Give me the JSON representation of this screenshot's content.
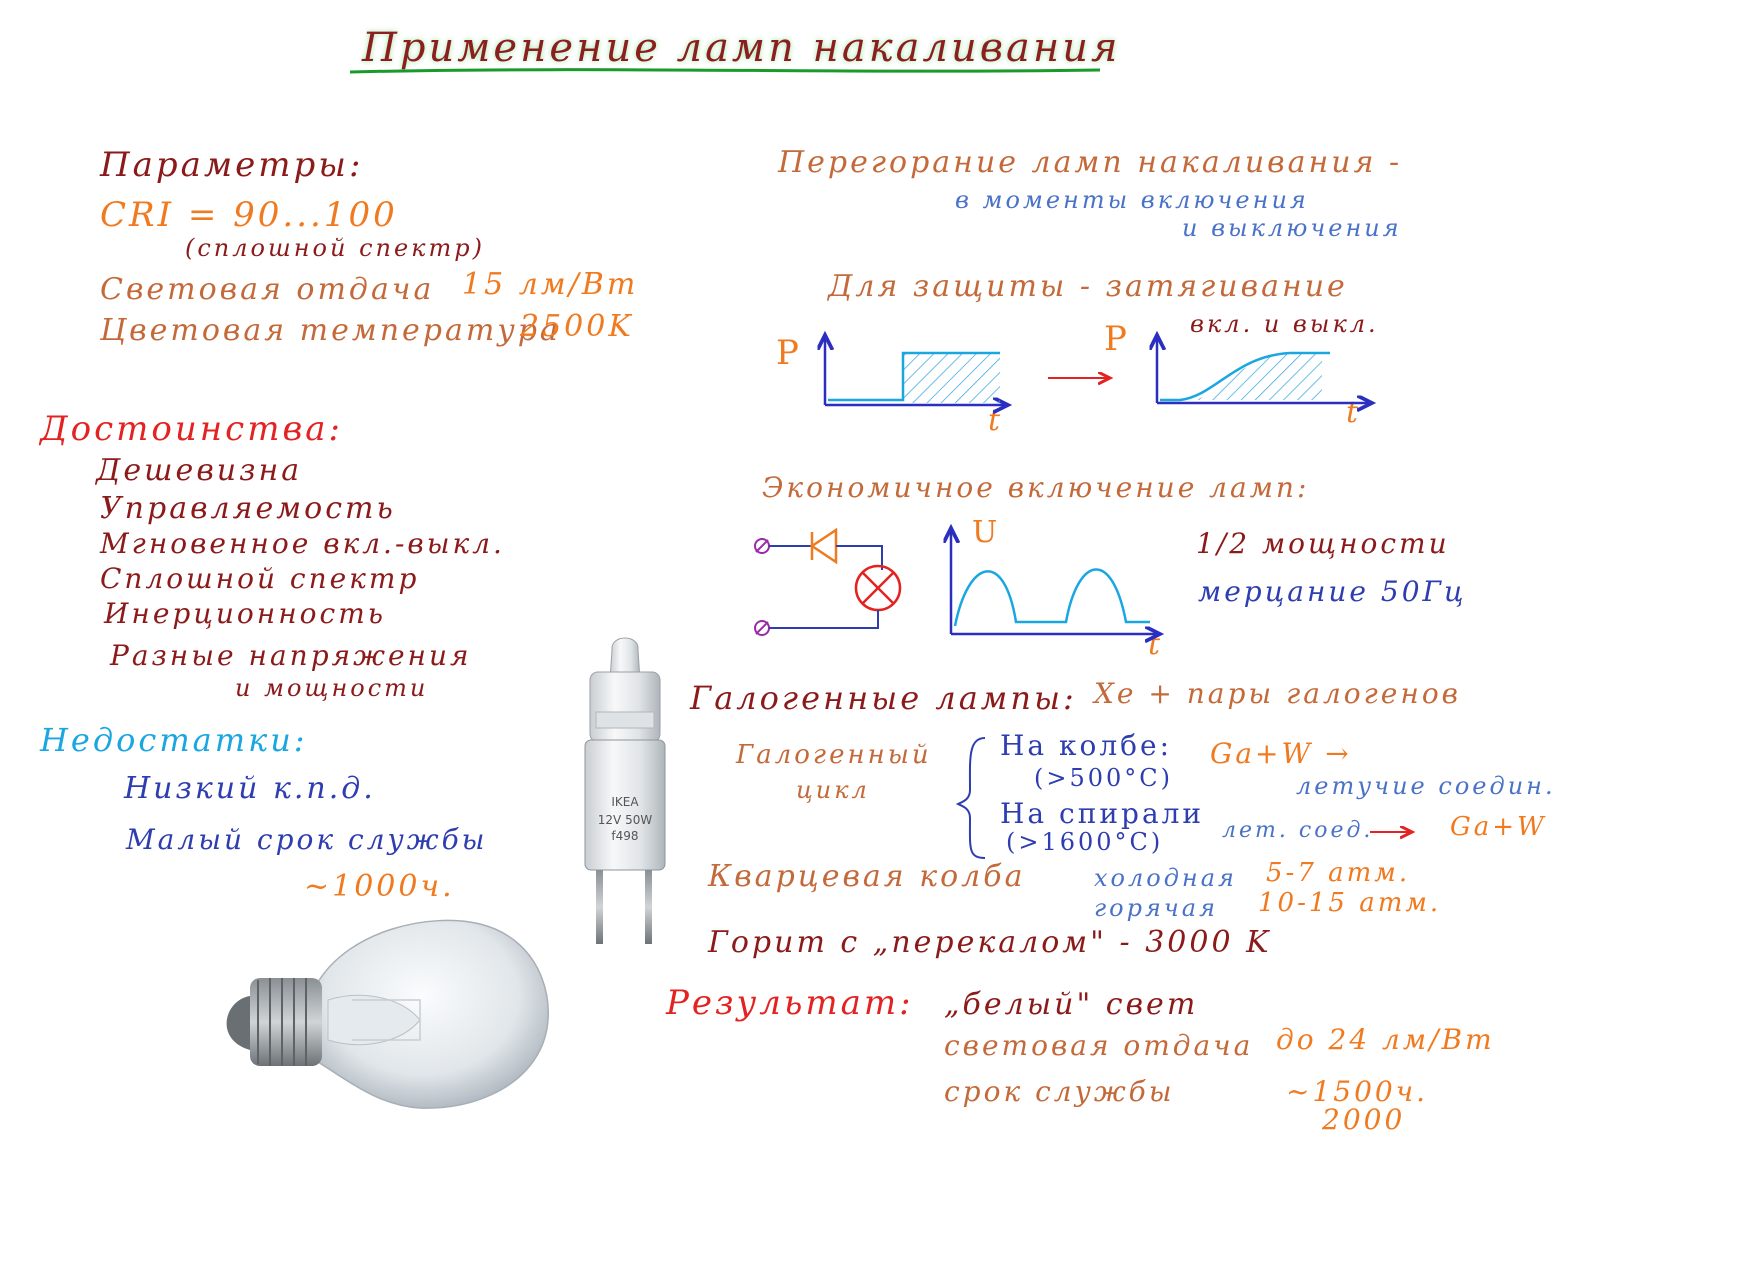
{
  "colors": {
    "title": "#8b1e1e",
    "title_underline": "#1a9a2a",
    "dark_red": "#8b1a1a",
    "red": "#e32222",
    "orange": "#f07a1f",
    "brown": "#c46a3a",
    "blue": "#2e3db0",
    "light_blue": "#4a72c8",
    "cyan": "#1aa6e0",
    "hatch": "#3aa8e0",
    "axis": "#2a2fc0",
    "purple": "#9a2aa8"
  },
  "title": "Применение ламп накаливания",
  "parameters": {
    "heading": "Параметры:",
    "cri": "CRI = 90...100",
    "cri_note": "(сплошной спектр)",
    "efficacy_label": "Световая отдача",
    "efficacy_value": "15 лм/Вт",
    "temp_label": "Цветовая температура",
    "temp_value": "2500K"
  },
  "advantages": {
    "heading": "Достоинства:",
    "items": [
      "Дешевизна",
      "Управляемость",
      "Мгновенное вкл.-выкл.",
      "Сплошной спектр",
      "Инерционность",
      "Разные напряжения",
      "и мощности"
    ]
  },
  "disadvantages": {
    "heading": "Недостатки:",
    "low_efficiency": "Низкий к.п.д.",
    "short_life": "Малый срок службы",
    "life_value": "~1000ч."
  },
  "burnout": {
    "heading": "Перегорание ламп накаливания -",
    "line2": "в моменты включения",
    "line3": "и выключения"
  },
  "protection": {
    "heading": "Для защиты - затягивание",
    "line2": "вкл. и выкл.",
    "axis_p": "P",
    "axis_t": "t"
  },
  "economy": {
    "heading": "Экономичное включение ламп:",
    "axis_u": "U",
    "axis_t": "t",
    "half_power": "1/2 мощности",
    "flicker": "мерцание 50Гц"
  },
  "halogen": {
    "heading": "Галогенные лампы:",
    "fill": "Xe + пары галогенов",
    "cycle_label_1": "Галогенный",
    "cycle_label_2": "цикл",
    "on_bulb": "На колбе:",
    "on_bulb_temp": "(>500°C)",
    "on_bulb_reaction": "Ga+W →",
    "volatile": "летучие соедин.",
    "on_spiral": "На спирали",
    "on_spiral_temp": "(>1600°C)",
    "volatile_short": "лет. соед.",
    "spiral_reaction": "Ga+W",
    "quartz": "Кварцевая колба",
    "cold": "холодная",
    "cold_value": "5-7 атм.",
    "hot": "горячая",
    "hot_value": "10-15 атм.",
    "overheat": "Горит с „перекалом\" - 3000 K"
  },
  "result": {
    "heading": "Результат:",
    "white": "„белый\" свет",
    "efficacy": "световая отдача",
    "efficacy_value": "до 24 лм/Вт",
    "life": "срок службы",
    "life_value": "~1500ч.",
    "life_value2": "2000"
  },
  "capsule_label": {
    "brand": "IKEA",
    "rating": "12V 50W",
    "code": "f498"
  }
}
